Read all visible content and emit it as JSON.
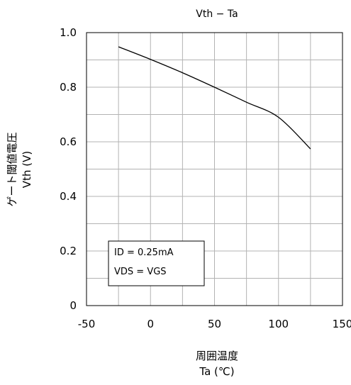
{
  "chart_data": {
    "type": "line",
    "title": "Vth − Ta",
    "xlabel_line1": "周囲温度",
    "xlabel_line2": "Ta (℃)",
    "ylabel_line1": "ゲート閾値電圧",
    "ylabel_line2": "Vth (V)",
    "xlim": [
      -50,
      150
    ],
    "ylim": [
      0,
      1.0
    ],
    "x_ticks": [
      -50,
      0,
      50,
      100,
      150
    ],
    "x_tick_labels": [
      "-50",
      "0",
      "50",
      "100",
      "150"
    ],
    "y_ticks": [
      0,
      0.2,
      0.4,
      0.6,
      0.8,
      1.0
    ],
    "y_tick_labels": [
      "0",
      "0.2",
      "0.4",
      "0.6",
      "0.8",
      "1.0"
    ],
    "grid": true,
    "series": [
      {
        "x": [
          -25,
          0,
          25,
          50,
          75,
          100,
          125
        ],
        "y": [
          0.948,
          0.902,
          0.853,
          0.8,
          0.745,
          0.69,
          0.574
        ]
      }
    ],
    "annotation": {
      "line1": "ID = 0.25mA",
      "line2": "VDS = VGS"
    }
  },
  "colors": {
    "line": "#000000",
    "grid": "#b3b3b3",
    "frame": "#000000",
    "background": "#ffffff"
  }
}
